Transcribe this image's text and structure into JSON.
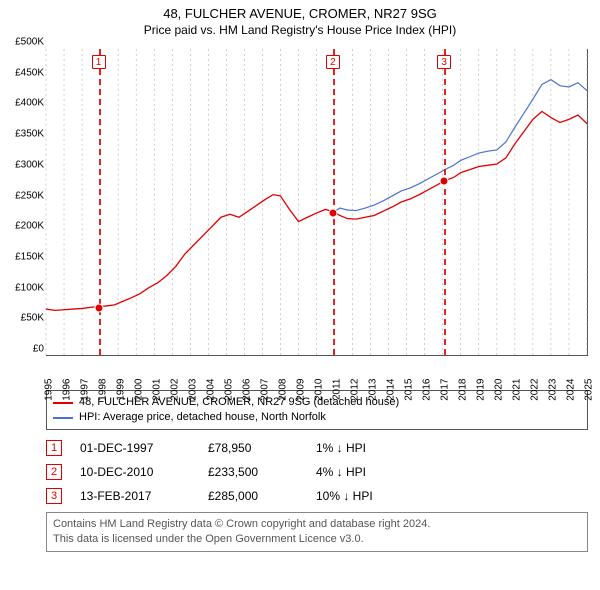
{
  "title": "48, FULCHER AVENUE, CROMER, NR27 9SG",
  "subtitle": "Price paid vs. HM Land Registry's House Price Index (HPI)",
  "chart": {
    "type": "line",
    "x_year_min": 1995,
    "x_year_max": 2025,
    "y_min": 0,
    "y_max": 500000,
    "y_ticks": [
      "£0",
      "£50K",
      "£100K",
      "£150K",
      "£200K",
      "£250K",
      "£300K",
      "£350K",
      "£400K",
      "£450K",
      "£500K"
    ],
    "x_ticks": [
      "1995",
      "1996",
      "1997",
      "1998",
      "1999",
      "2000",
      "2001",
      "2002",
      "2003",
      "2004",
      "2005",
      "2006",
      "2007",
      "2008",
      "2009",
      "2010",
      "2011",
      "2012",
      "2013",
      "2014",
      "2015",
      "2016",
      "2017",
      "2018",
      "2019",
      "2020",
      "2021",
      "2022",
      "2023",
      "2024",
      "2025"
    ],
    "grid_color": "#a0a0a0",
    "background": "#ffffff",
    "series": [
      {
        "id": "property",
        "label": "48, FULCHER AVENUE, CROMER, NR27 9SG (detached house)",
        "color": "#e00000",
        "width": 1.3,
        "points": [
          [
            1995.0,
            75000
          ],
          [
            1995.5,
            73000
          ],
          [
            1996.0,
            74000
          ],
          [
            1996.5,
            75000
          ],
          [
            1997.0,
            76000
          ],
          [
            1997.5,
            78000
          ],
          [
            1997.92,
            78950
          ],
          [
            1998.3,
            80000
          ],
          [
            1998.8,
            82000
          ],
          [
            1999.2,
            87000
          ],
          [
            1999.7,
            93000
          ],
          [
            2000.2,
            100000
          ],
          [
            2000.7,
            110000
          ],
          [
            2001.2,
            118000
          ],
          [
            2001.7,
            130000
          ],
          [
            2002.2,
            145000
          ],
          [
            2002.7,
            165000
          ],
          [
            2003.2,
            180000
          ],
          [
            2003.7,
            195000
          ],
          [
            2004.2,
            210000
          ],
          [
            2004.7,
            225000
          ],
          [
            2005.2,
            230000
          ],
          [
            2005.7,
            225000
          ],
          [
            2006.2,
            235000
          ],
          [
            2006.7,
            245000
          ],
          [
            2007.2,
            255000
          ],
          [
            2007.6,
            262000
          ],
          [
            2008.0,
            260000
          ],
          [
            2008.5,
            238000
          ],
          [
            2009.0,
            218000
          ],
          [
            2009.5,
            225000
          ],
          [
            2010.0,
            232000
          ],
          [
            2010.5,
            238000
          ],
          [
            2010.94,
            233500
          ],
          [
            2011.3,
            228000
          ],
          [
            2011.7,
            223000
          ],
          [
            2012.2,
            222000
          ],
          [
            2012.7,
            225000
          ],
          [
            2013.2,
            228000
          ],
          [
            2013.7,
            235000
          ],
          [
            2014.2,
            242000
          ],
          [
            2014.7,
            250000
          ],
          [
            2015.2,
            255000
          ],
          [
            2015.7,
            262000
          ],
          [
            2016.2,
            270000
          ],
          [
            2016.7,
            278000
          ],
          [
            2017.12,
            285000
          ],
          [
            2017.6,
            290000
          ],
          [
            2018.0,
            298000
          ],
          [
            2018.5,
            303000
          ],
          [
            2019.0,
            308000
          ],
          [
            2019.5,
            310000
          ],
          [
            2020.0,
            312000
          ],
          [
            2020.5,
            322000
          ],
          [
            2021.0,
            345000
          ],
          [
            2021.5,
            365000
          ],
          [
            2022.0,
            385000
          ],
          [
            2022.5,
            398000
          ],
          [
            2023.0,
            388000
          ],
          [
            2023.5,
            380000
          ],
          [
            2024.0,
            385000
          ],
          [
            2024.5,
            392000
          ],
          [
            2025.0,
            378000
          ]
        ]
      },
      {
        "id": "hpi",
        "label": "HPI: Average price, detached house, North Norfolk",
        "color": "#4a72d4",
        "width": 1.2,
        "points": [
          [
            2010.94,
            233500
          ],
          [
            2011.3,
            240000
          ],
          [
            2011.7,
            237000
          ],
          [
            2012.2,
            236000
          ],
          [
            2012.7,
            240000
          ],
          [
            2013.2,
            245000
          ],
          [
            2013.7,
            252000
          ],
          [
            2014.2,
            260000
          ],
          [
            2014.7,
            268000
          ],
          [
            2015.2,
            273000
          ],
          [
            2015.7,
            280000
          ],
          [
            2016.2,
            288000
          ],
          [
            2016.7,
            296000
          ],
          [
            2017.12,
            303000
          ],
          [
            2017.6,
            310000
          ],
          [
            2018.0,
            318000
          ],
          [
            2018.5,
            324000
          ],
          [
            2019.0,
            330000
          ],
          [
            2019.5,
            333000
          ],
          [
            2020.0,
            335000
          ],
          [
            2020.5,
            348000
          ],
          [
            2021.0,
            372000
          ],
          [
            2021.5,
            395000
          ],
          [
            2022.0,
            418000
          ],
          [
            2022.5,
            442000
          ],
          [
            2023.0,
            450000
          ],
          [
            2023.5,
            440000
          ],
          [
            2024.0,
            438000
          ],
          [
            2024.5,
            445000
          ],
          [
            2025.0,
            432000
          ]
        ]
      }
    ],
    "sale_markers": [
      {
        "n": "1",
        "year": 1997.92,
        "price": 78950
      },
      {
        "n": "2",
        "year": 2010.94,
        "price": 233500
      },
      {
        "n": "3",
        "year": 2017.12,
        "price": 285000
      }
    ]
  },
  "legend": {
    "items": [
      {
        "label_bind": "chart.series.0.label",
        "color": "#e00000"
      },
      {
        "label_bind": "chart.series.1.label",
        "color": "#4a72d4"
      }
    ]
  },
  "events": [
    {
      "n": "1",
      "date": "01-DEC-1997",
      "price": "£78,950",
      "delta": "1% ↓ HPI"
    },
    {
      "n": "2",
      "date": "10-DEC-2010",
      "price": "£233,500",
      "delta": "4% ↓ HPI"
    },
    {
      "n": "3",
      "date": "13-FEB-2017",
      "price": "£285,000",
      "delta": "10% ↓ HPI"
    }
  ],
  "footer_line1": "Contains HM Land Registry data © Crown copyright and database right 2024.",
  "footer_line2": "This data is licensed under the Open Government Licence v3.0."
}
